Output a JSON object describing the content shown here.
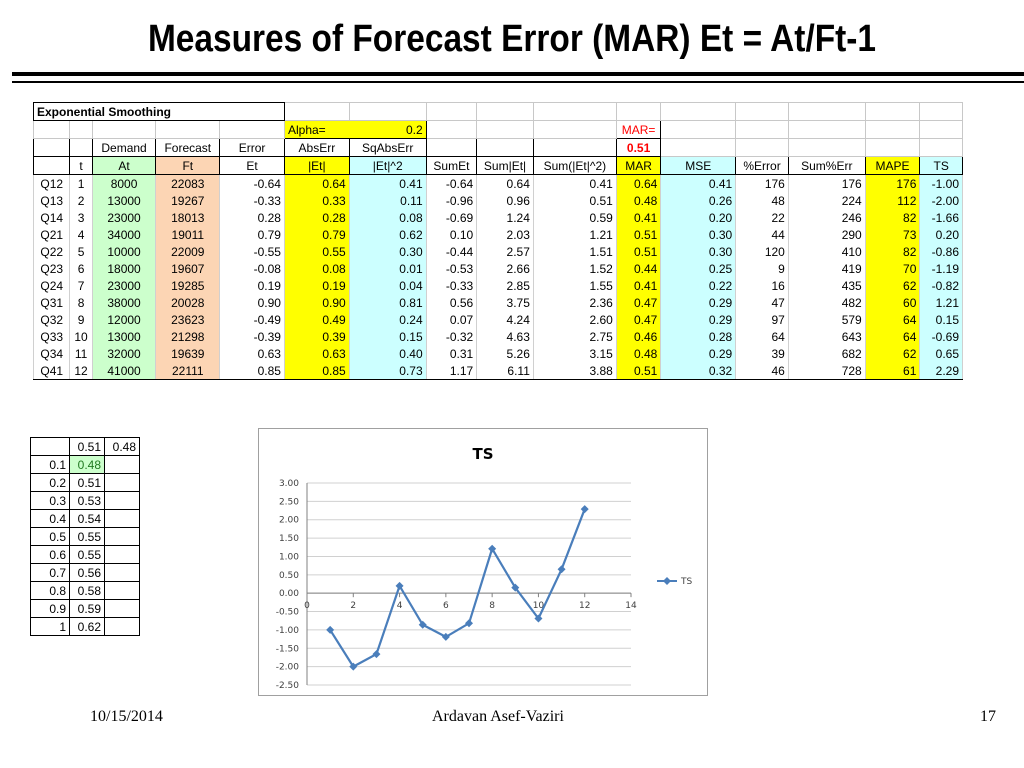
{
  "slide": {
    "title": "Measures of Forecast Error (MAR) Et = At/Ft-1",
    "footer_date": "10/15/2014",
    "footer_author": "Ardavan Asef-Vaziri",
    "page_number": "17"
  },
  "table": {
    "section_label": "Exponential Smoothing",
    "alpha_label": "Alpha=",
    "alpha_value": "0.2",
    "mar_label": "MAR=",
    "mar_value": "0.51",
    "subheaders": [
      "Demand",
      "Forecast",
      "Error",
      "AbsErr",
      "SqAbsErr"
    ],
    "headers": [
      "",
      "t",
      "At",
      "Ft",
      "Et",
      "|Et|",
      "|Et|^2",
      "SumEt",
      "Sum|Et|",
      "Sum(|Et|^2)",
      "MAR",
      "MSE",
      "%Error",
      "Sum%Err",
      "MAPE",
      "TS"
    ],
    "rows": [
      [
        "Q12",
        "1",
        "8000",
        "22083",
        "-0.64",
        "0.64",
        "0.41",
        "-0.64",
        "0.64",
        "0.41",
        "0.64",
        "0.41",
        "176",
        "176",
        "176",
        "-1.00"
      ],
      [
        "Q13",
        "2",
        "13000",
        "19267",
        "-0.33",
        "0.33",
        "0.11",
        "-0.96",
        "0.96",
        "0.51",
        "0.48",
        "0.26",
        "48",
        "224",
        "112",
        "-2.00"
      ],
      [
        "Q14",
        "3",
        "23000",
        "18013",
        "0.28",
        "0.28",
        "0.08",
        "-0.69",
        "1.24",
        "0.59",
        "0.41",
        "0.20",
        "22",
        "246",
        "82",
        "-1.66"
      ],
      [
        "Q21",
        "4",
        "34000",
        "19011",
        "0.79",
        "0.79",
        "0.62",
        "0.10",
        "2.03",
        "1.21",
        "0.51",
        "0.30",
        "44",
        "290",
        "73",
        "0.20"
      ],
      [
        "Q22",
        "5",
        "10000",
        "22009",
        "-0.55",
        "0.55",
        "0.30",
        "-0.44",
        "2.57",
        "1.51",
        "0.51",
        "0.30",
        "120",
        "410",
        "82",
        "-0.86"
      ],
      [
        "Q23",
        "6",
        "18000",
        "19607",
        "-0.08",
        "0.08",
        "0.01",
        "-0.53",
        "2.66",
        "1.52",
        "0.44",
        "0.25",
        "9",
        "419",
        "70",
        "-1.19"
      ],
      [
        "Q24",
        "7",
        "23000",
        "19285",
        "0.19",
        "0.19",
        "0.04",
        "-0.33",
        "2.85",
        "1.55",
        "0.41",
        "0.22",
        "16",
        "435",
        "62",
        "-0.82"
      ],
      [
        "Q31",
        "8",
        "38000",
        "20028",
        "0.90",
        "0.90",
        "0.81",
        "0.56",
        "3.75",
        "2.36",
        "0.47",
        "0.29",
        "47",
        "482",
        "60",
        "1.21"
      ],
      [
        "Q32",
        "9",
        "12000",
        "23623",
        "-0.49",
        "0.49",
        "0.24",
        "0.07",
        "4.24",
        "2.60",
        "0.47",
        "0.29",
        "97",
        "579",
        "64",
        "0.15"
      ],
      [
        "Q33",
        "10",
        "13000",
        "21298",
        "-0.39",
        "0.39",
        "0.15",
        "-0.32",
        "4.63",
        "2.75",
        "0.46",
        "0.28",
        "64",
        "643",
        "64",
        "-0.69"
      ],
      [
        "Q34",
        "11",
        "32000",
        "19639",
        "0.63",
        "0.63",
        "0.40",
        "0.31",
        "5.26",
        "3.15",
        "0.48",
        "0.29",
        "39",
        "682",
        "62",
        "0.65"
      ],
      [
        "Q41",
        "12",
        "41000",
        "22111",
        "0.85",
        "0.85",
        "0.73",
        "1.17",
        "6.11",
        "3.88",
        "0.51",
        "0.32",
        "46",
        "728",
        "61",
        "2.29"
      ]
    ]
  },
  "sensitivity": {
    "header": [
      "",
      "0.51",
      "0.48"
    ],
    "rows": [
      [
        "0.1",
        "0.48",
        ""
      ],
      [
        "0.2",
        "0.51",
        ""
      ],
      [
        "0.3",
        "0.53",
        ""
      ],
      [
        "0.4",
        "0.54",
        ""
      ],
      [
        "0.5",
        "0.55",
        ""
      ],
      [
        "0.6",
        "0.55",
        ""
      ],
      [
        "0.7",
        "0.56",
        ""
      ],
      [
        "0.8",
        "0.58",
        ""
      ],
      [
        "0.9",
        "0.59",
        ""
      ],
      [
        "1",
        "0.62",
        ""
      ]
    ]
  },
  "chart_data": {
    "type": "line",
    "title": "TS",
    "series": [
      {
        "name": "TS",
        "color": "#4a7ebb",
        "x": [
          1,
          2,
          3,
          4,
          5,
          6,
          7,
          8,
          9,
          10,
          11,
          12
        ],
        "values": [
          -1.0,
          -2.0,
          -1.66,
          0.2,
          -0.86,
          -1.19,
          -0.82,
          1.21,
          0.15,
          -0.69,
          0.65,
          2.29
        ]
      }
    ],
    "xlim": [
      0,
      14
    ],
    "ylim": [
      -2.5,
      3.0
    ],
    "x_ticks": [
      0,
      2,
      4,
      6,
      8,
      10,
      12,
      14
    ],
    "y_ticks": [
      "3.00",
      "2.50",
      "2.00",
      "1.50",
      "1.00",
      "0.50",
      "0.00",
      "-0.50",
      "-1.00",
      "-1.50",
      "-2.00",
      "-2.50"
    ],
    "grid": true,
    "legend": "right"
  }
}
